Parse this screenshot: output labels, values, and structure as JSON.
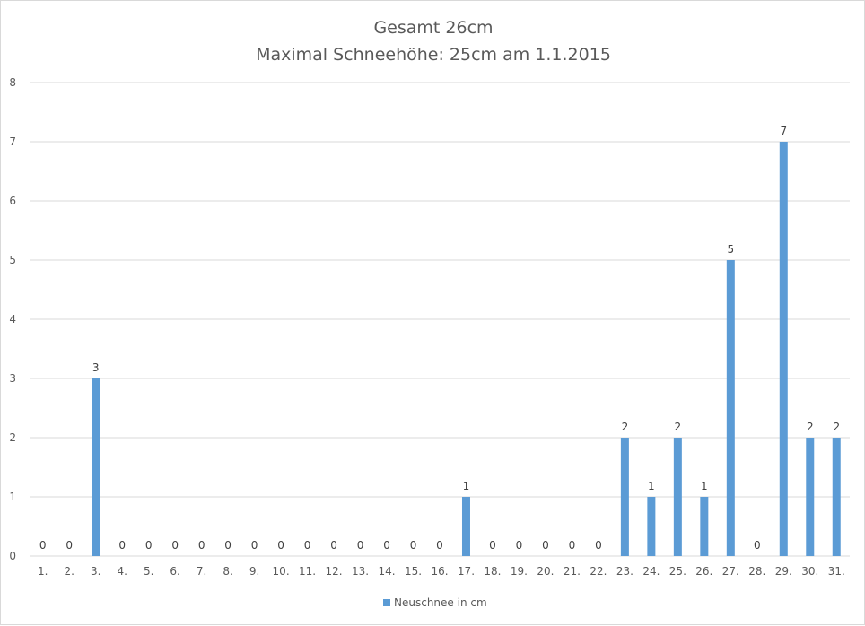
{
  "chart_data": {
    "type": "bar",
    "title": "Gesamt 26cm",
    "subtitle": "Maximal Schneehöhe: 25cm am 1.1.2015",
    "categories": [
      "1.",
      "2.",
      "3.",
      "4.",
      "5.",
      "6.",
      "7.",
      "8.",
      "9.",
      "10.",
      "11.",
      "12.",
      "13.",
      "14.",
      "15.",
      "16.",
      "17.",
      "18.",
      "19.",
      "20.",
      "21.",
      "22.",
      "23.",
      "24.",
      "25.",
      "26.",
      "27.",
      "28.",
      "29.",
      "30.",
      "31."
    ],
    "series": [
      {
        "name": "Neuschnee in cm",
        "values": [
          0,
          0,
          3,
          0,
          0,
          0,
          0,
          0,
          0,
          0,
          0,
          0,
          0,
          0,
          0,
          0,
          1,
          0,
          0,
          0,
          0,
          0,
          2,
          1,
          2,
          1,
          5,
          0,
          7,
          2,
          2
        ]
      }
    ],
    "ylim": [
      0,
      8
    ],
    "yticks": [
      0,
      1,
      2,
      3,
      4,
      5,
      6,
      7,
      8
    ],
    "xlabel": "",
    "ylabel": "",
    "grid": true,
    "data_labels": true,
    "legend_position": "bottom",
    "bar_color": "#5b9bd5",
    "grid_color": "#d9d9d9"
  }
}
